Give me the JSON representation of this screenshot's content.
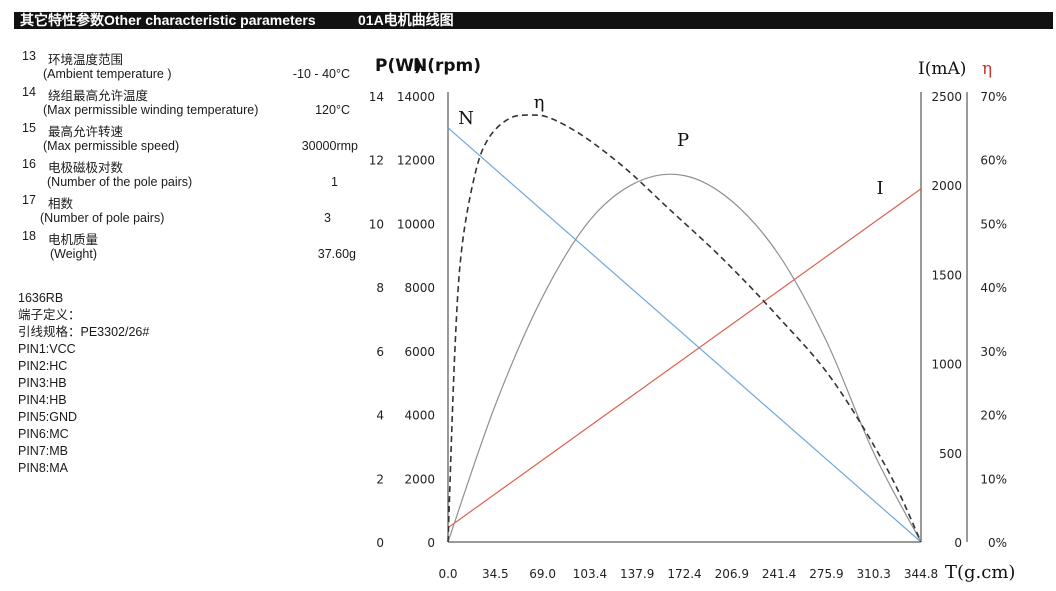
{
  "headers": {
    "left": "其它特性参数Other characteristic parameters",
    "right": "01A电机曲线图"
  },
  "params": [
    {
      "num": "13",
      "cn": "环境温度范围",
      "en": "(Ambient  temperature )",
      "value": "-10 - 40°C"
    },
    {
      "num": "14",
      "cn": "绕组最高允许温度",
      "en": "(Max permissible winding temperature)",
      "value": "120°C"
    },
    {
      "num": "15",
      "cn": "最高允许转速",
      "en": "(Max permissible speed)",
      "value": "30000rmp"
    },
    {
      "num": "16",
      "cn": "电极磁极对数",
      "en": "(Number of  the pole pairs)",
      "value": "1"
    },
    {
      "num": "17",
      "cn": "相数",
      "en": "(Number of pole pairs)",
      "value": "3"
    },
    {
      "num": "18",
      "cn": "电机质量",
      "en": "(Weight)",
      "value": "37.60g"
    }
  ],
  "pins": [
    "1636RB",
    " 端子定义：",
    "引线规格：PE3302/26#",
    "PIN1:VCC",
    "PIN2:HC",
    "PIN3:HB",
    "PIN4:HB",
    "PIN5:GND",
    "PIN6:MC",
    "PIN7:MB",
    "PIN8:MA"
  ],
  "chart_data": {
    "type": "line",
    "title": "",
    "xlabel": "T(g.cm)",
    "x_ticks": [
      "0.0",
      "34.5",
      "69.0",
      "103.4",
      "137.9",
      "172.4",
      "206.9",
      "241.4",
      "275.9",
      "310.3",
      "344.8"
    ],
    "xlim": [
      0,
      344.8
    ],
    "axes": {
      "P": {
        "label": "P(W)",
        "ticks": [
          "0",
          "2",
          "4",
          "6",
          "8",
          "10",
          "12",
          "14"
        ],
        "range": [
          0,
          14
        ]
      },
      "N": {
        "label": "N(rpm)",
        "ticks": [
          "0",
          "2000",
          "4000",
          "6000",
          "8000",
          "10000",
          "12000",
          "14000"
        ],
        "range": [
          0,
          14000
        ]
      },
      "I": {
        "label": "I(mA)",
        "ticks": [
          "0",
          "500",
          "1000",
          "1500",
          "2000",
          "2500"
        ],
        "range": [
          0,
          2500
        ]
      },
      "eta": {
        "label": "η",
        "ticks": [
          "0%",
          "10%",
          "20%",
          "30%",
          "40%",
          "50%",
          "60%",
          "70%"
        ],
        "range": [
          0,
          70
        ]
      }
    },
    "series": [
      {
        "name": "N",
        "axis": "N",
        "color": "#6fa8dc",
        "dash": false,
        "x": [
          0,
          344.8
        ],
        "y": [
          13000,
          0
        ]
      },
      {
        "name": "I",
        "axis": "I",
        "color": "#e06050",
        "dash": false,
        "x": [
          0,
          344.8
        ],
        "y": [
          80,
          1980
        ]
      },
      {
        "name": "P",
        "axis": "P",
        "color": "#909090",
        "dash": false,
        "x": [
          0,
          34.5,
          69.0,
          103.4,
          137.9,
          172.4,
          206.9,
          241.4,
          275.9,
          310.3,
          344.8
        ],
        "y": [
          0,
          4.3,
          7.7,
          10.1,
          11.3,
          11.5,
          10.7,
          9.0,
          6.3,
          2.8,
          0
        ]
      },
      {
        "name": "η",
        "axis": "eta",
        "color": "#333333",
        "dash": true,
        "x": [
          0,
          5,
          10,
          20,
          30,
          45,
          60,
          75,
          100,
          130,
          160,
          200,
          240,
          280,
          320,
          344.8
        ],
        "y": [
          0,
          30,
          46,
          58,
          63.5,
          66.5,
          67,
          66.5,
          63.5,
          58.5,
          52.5,
          44.5,
          35.5,
          25.5,
          11.5,
          0
        ]
      }
    ],
    "curve_labels": [
      {
        "text": "N",
        "series": "N"
      },
      {
        "text": "η",
        "series": "η"
      },
      {
        "text": "P",
        "series": "P"
      },
      {
        "text": "I",
        "series": "I"
      }
    ],
    "grid": false
  }
}
